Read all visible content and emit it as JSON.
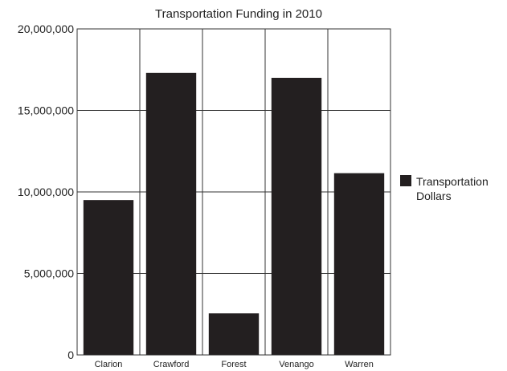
{
  "chart_data": {
    "type": "bar",
    "title": "Transportation Funding in 2010",
    "xlabel": "",
    "ylabel": "",
    "categories": [
      "Clarion",
      "Crawford",
      "Forest",
      "Venango",
      "Warren"
    ],
    "series": [
      {
        "name": "Transportation Dollars",
        "values": [
          9500000,
          17300000,
          2550000,
          17000000,
          11150000
        ],
        "color": "#231f20"
      }
    ],
    "ylim": [
      0,
      20000000
    ],
    "yticks": [
      0,
      5000000,
      10000000,
      15000000,
      20000000
    ],
    "ytick_labels": [
      "0",
      "5,000,000",
      "10,000,000",
      "15,000,000",
      "20,000,000"
    ],
    "grid": true,
    "legend_position": "right",
    "legend_lines": [
      "Transportation",
      "Dollars"
    ]
  }
}
